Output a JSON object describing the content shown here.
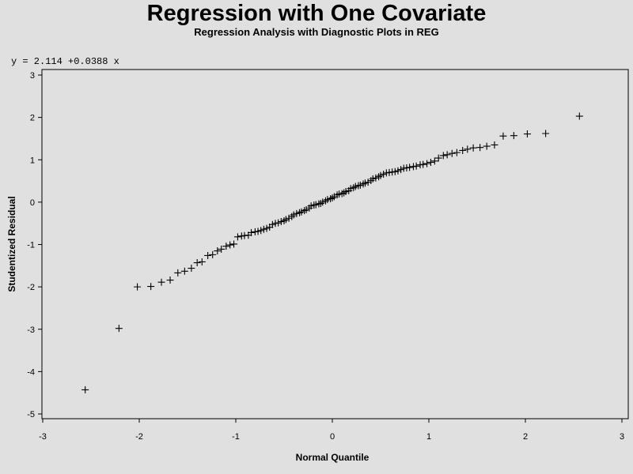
{
  "chart_data": {
    "type": "scatter",
    "title": "Regression with One Covariate",
    "subtitle": "Regression Analysis with Diagnostic Plots in REG",
    "equation": "y = 2.114 +0.0388 x",
    "xlabel": "Normal Quantile",
    "ylabel": "Studentized Residual",
    "xlim": [
      -3,
      3
    ],
    "ylim": [
      -5,
      3
    ],
    "xticks": [
      -3,
      -2,
      -1,
      0,
      1,
      2,
      3
    ],
    "yticks": [
      -5,
      -4,
      -3,
      -2,
      -1,
      0,
      1,
      2,
      3
    ],
    "grid": false,
    "marker": "+",
    "points": [
      [
        -2.56,
        -4.43
      ],
      [
        -2.21,
        -2.98
      ],
      [
        -2.02,
        -2.0
      ],
      [
        -1.88,
        -1.99
      ],
      [
        -1.77,
        -1.89
      ],
      [
        -1.68,
        -1.84
      ],
      [
        -1.6,
        -1.67
      ],
      [
        -1.53,
        -1.63
      ],
      [
        -1.46,
        -1.56
      ],
      [
        -1.4,
        -1.43
      ],
      [
        -1.35,
        -1.41
      ],
      [
        -1.29,
        -1.26
      ],
      [
        -1.24,
        -1.24
      ],
      [
        -1.19,
        -1.15
      ],
      [
        -1.15,
        -1.11
      ],
      [
        -1.1,
        -1.04
      ],
      [
        -1.06,
        -1.01
      ],
      [
        -1.02,
        -0.99
      ],
      [
        -0.98,
        -0.82
      ],
      [
        -0.94,
        -0.8
      ],
      [
        -0.91,
        -0.79
      ],
      [
        -0.87,
        -0.78
      ],
      [
        -0.84,
        -0.72
      ],
      [
        -0.8,
        -0.7
      ],
      [
        -0.77,
        -0.69
      ],
      [
        -0.74,
        -0.67
      ],
      [
        -0.71,
        -0.64
      ],
      [
        -0.68,
        -0.62
      ],
      [
        -0.65,
        -0.59
      ],
      [
        -0.62,
        -0.53
      ],
      [
        -0.59,
        -0.5
      ],
      [
        -0.56,
        -0.49
      ],
      [
        -0.53,
        -0.46
      ],
      [
        -0.5,
        -0.44
      ],
      [
        -0.48,
        -0.41
      ],
      [
        -0.45,
        -0.38
      ],
      [
        -0.42,
        -0.34
      ],
      [
        -0.4,
        -0.3
      ],
      [
        -0.37,
        -0.27
      ],
      [
        -0.34,
        -0.25
      ],
      [
        -0.32,
        -0.23
      ],
      [
        -0.29,
        -0.2
      ],
      [
        -0.27,
        -0.18
      ],
      [
        -0.24,
        -0.14
      ],
      [
        -0.22,
        -0.09
      ],
      [
        -0.19,
        -0.07
      ],
      [
        -0.17,
        -0.06
      ],
      [
        -0.14,
        -0.04
      ],
      [
        -0.12,
        -0.03
      ],
      [
        -0.1,
        0.0
      ],
      [
        -0.07,
        0.03
      ],
      [
        -0.05,
        0.06
      ],
      [
        -0.02,
        0.08
      ],
      [
        0.0,
        0.1
      ],
      [
        0.02,
        0.13
      ],
      [
        0.05,
        0.17
      ],
      [
        0.07,
        0.19
      ],
      [
        0.1,
        0.2
      ],
      [
        0.12,
        0.22
      ],
      [
        0.14,
        0.25
      ],
      [
        0.17,
        0.27
      ],
      [
        0.19,
        0.32
      ],
      [
        0.22,
        0.34
      ],
      [
        0.24,
        0.37
      ],
      [
        0.27,
        0.39
      ],
      [
        0.29,
        0.4
      ],
      [
        0.32,
        0.43
      ],
      [
        0.34,
        0.45
      ],
      [
        0.37,
        0.47
      ],
      [
        0.4,
        0.51
      ],
      [
        0.42,
        0.55
      ],
      [
        0.45,
        0.57
      ],
      [
        0.48,
        0.6
      ],
      [
        0.5,
        0.63
      ],
      [
        0.53,
        0.66
      ],
      [
        0.56,
        0.69
      ],
      [
        0.59,
        0.7
      ],
      [
        0.62,
        0.71
      ],
      [
        0.65,
        0.72
      ],
      [
        0.68,
        0.74
      ],
      [
        0.71,
        0.77
      ],
      [
        0.74,
        0.8
      ],
      [
        0.77,
        0.81
      ],
      [
        0.8,
        0.82
      ],
      [
        0.84,
        0.84
      ],
      [
        0.87,
        0.85
      ],
      [
        0.91,
        0.88
      ],
      [
        0.94,
        0.89
      ],
      [
        0.98,
        0.91
      ],
      [
        1.02,
        0.94
      ],
      [
        1.06,
        0.97
      ],
      [
        1.1,
        1.04
      ],
      [
        1.15,
        1.1
      ],
      [
        1.19,
        1.12
      ],
      [
        1.24,
        1.15
      ],
      [
        1.29,
        1.17
      ],
      [
        1.35,
        1.22
      ],
      [
        1.4,
        1.25
      ],
      [
        1.46,
        1.28
      ],
      [
        1.53,
        1.29
      ],
      [
        1.6,
        1.32
      ],
      [
        1.68,
        1.35
      ],
      [
        1.77,
        1.56
      ],
      [
        1.88,
        1.57
      ],
      [
        2.02,
        1.61
      ],
      [
        2.21,
        1.62
      ],
      [
        2.56,
        2.03
      ]
    ]
  }
}
